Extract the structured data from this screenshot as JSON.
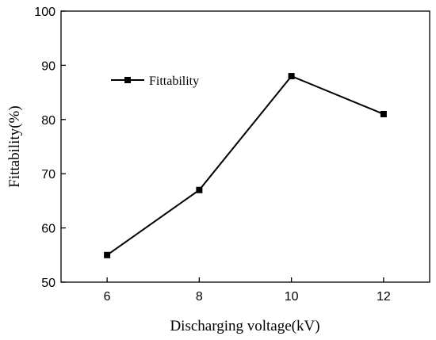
{
  "chart_data": {
    "type": "line",
    "title": "",
    "xlabel": "Discharging voltage(kV)",
    "ylabel": "Fittability(%)",
    "x": [
      6,
      8,
      10,
      12
    ],
    "series": [
      {
        "name": "Fittability",
        "values": [
          55,
          67,
          88,
          81
        ]
      }
    ],
    "xlim": [
      5,
      13
    ],
    "ylim": [
      50,
      100
    ],
    "xticks": [
      6,
      8,
      10,
      12
    ],
    "yticks": [
      50,
      60,
      70,
      80,
      90,
      100
    ],
    "grid": false,
    "legend": "top-left",
    "marker": "square",
    "line_color": "#000000"
  }
}
